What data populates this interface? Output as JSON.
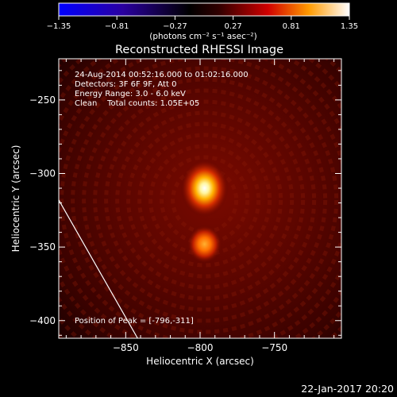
{
  "chart_data": {
    "type": "heatmap",
    "title": "Reconstructed RHESSI Image",
    "xlabel": "Heliocentric X (arcsec)",
    "ylabel": "Heliocentric Y (arcsec)",
    "xlim": [
      -895,
      -705
    ],
    "ylim": [
      -412,
      -222
    ],
    "xticks": [
      -850,
      -800,
      -750
    ],
    "yticks": [
      -250,
      -300,
      -350,
      -400
    ],
    "colorbar": {
      "min": -1.35,
      "max": 1.35,
      "ticks": [
        -1.35,
        -0.81,
        -0.27,
        0.27,
        0.81,
        1.35
      ],
      "tick_labels": [
        "-1.35",
        "-0.81",
        "-0.27",
        "0.27",
        "0.81",
        "1.35"
      ],
      "units": "(photons cm⁻² s⁻¹ asec⁻²)",
      "colormap": "blue-black-red-yellow-white"
    },
    "sources": [
      {
        "x": -797,
        "y": -310,
        "value": 1.35
      },
      {
        "x": -797,
        "y": -348,
        "value": 0.85
      }
    ],
    "limb_line": [
      [
        -895,
        -318
      ],
      [
        -842,
        -412
      ]
    ],
    "annotations": [
      "24-Aug-2014 00:52:16.000 to 01:02:16.000",
      "Detectors: 3F 6F 9F, Att 0",
      "Energy Range: 3.0 - 6.0 keV",
      "Clean    Total counts: 1.05E+05"
    ],
    "peak_label": "Position of Peak = [-796,-311]",
    "timestamp": "22-Jan-2017 20:20"
  }
}
